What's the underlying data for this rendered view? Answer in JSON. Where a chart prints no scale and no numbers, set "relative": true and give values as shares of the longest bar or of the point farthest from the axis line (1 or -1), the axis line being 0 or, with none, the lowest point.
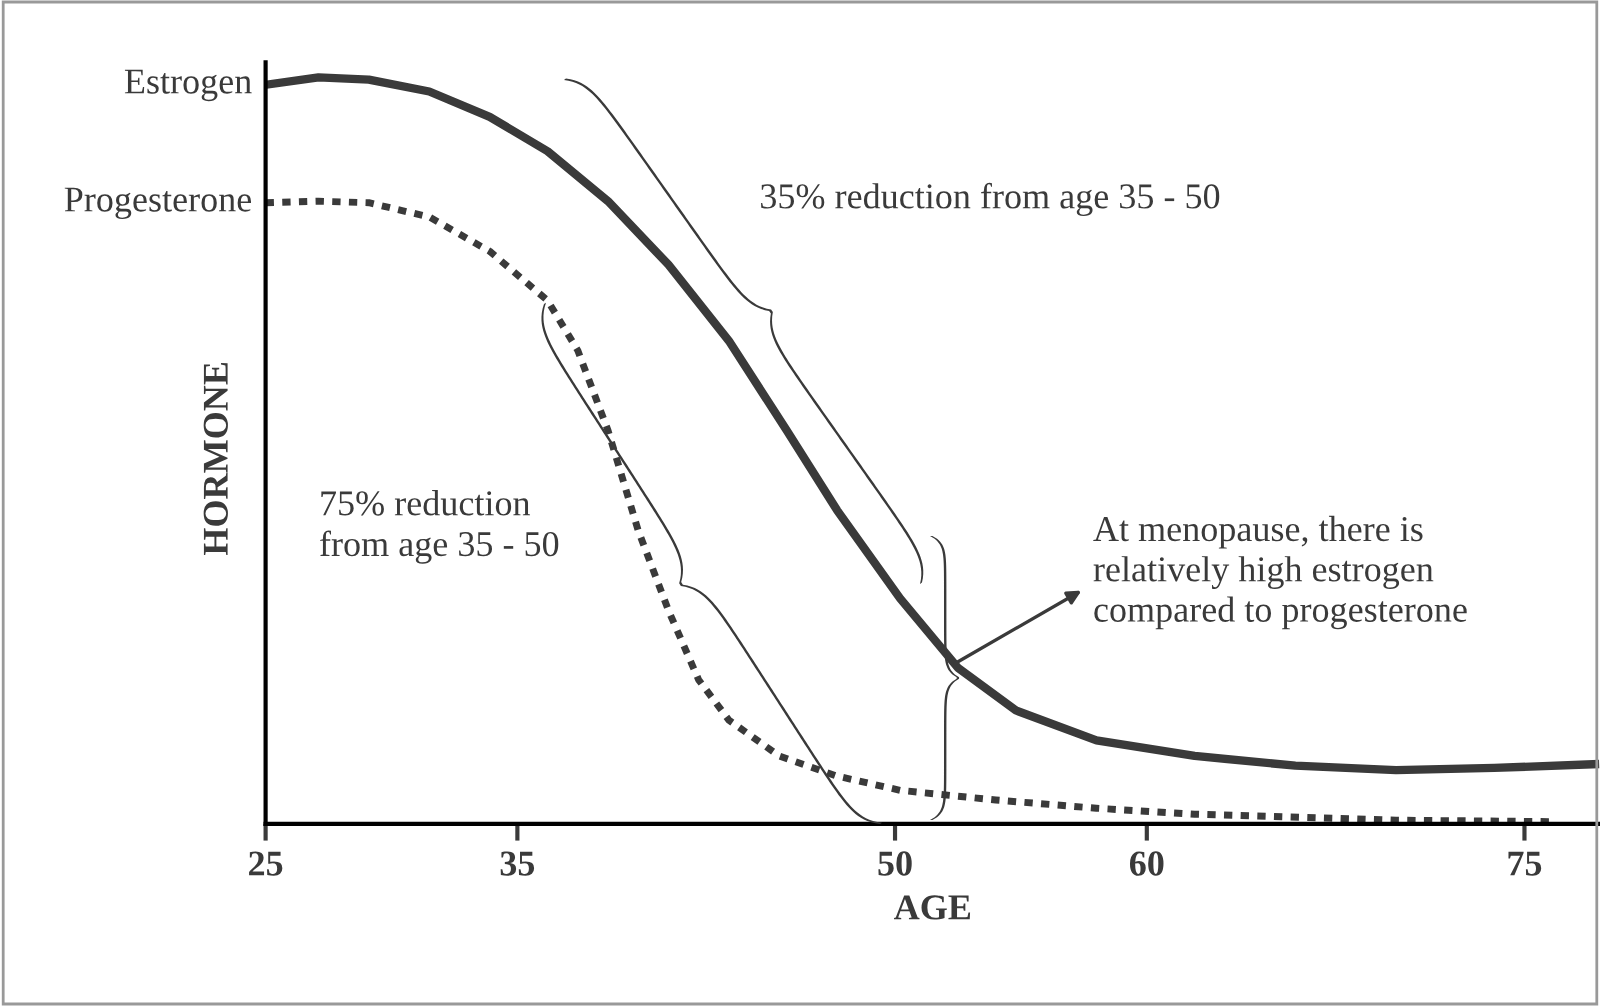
{
  "chart_data": {
    "type": "line",
    "relative": true,
    "xlabel": "AGE",
    "ylabel": "HORMONE",
    "xlim": [
      25,
      78
    ],
    "xticks": [
      25,
      35,
      50,
      60,
      75
    ],
    "legend": false,
    "grid": false,
    "series": [
      {
        "name": "Estrogen",
        "color": "#3a3a3a",
        "line_style": "solid",
        "x": [
          25,
          27.1,
          29.1,
          31.5,
          33.9,
          36.2,
          38.6,
          41.0,
          43.4,
          45.7,
          47.7,
          50.2,
          52.5,
          54.8,
          58.0,
          61.9,
          65.9,
          69.9,
          73.8,
          77.8
        ],
        "values": [
          0.99,
          1.0,
          0.997,
          0.981,
          0.947,
          0.901,
          0.834,
          0.749,
          0.647,
          0.527,
          0.42,
          0.302,
          0.209,
          0.152,
          0.112,
          0.091,
          0.078,
          0.072,
          0.075,
          0.08
        ]
      },
      {
        "name": "Progesterone",
        "color": "#3a3a3a",
        "line_style": "dotted",
        "x": [
          25,
          27.1,
          29.1,
          31.5,
          33.9,
          36.2,
          37.4,
          38.6,
          39.8,
          41.0,
          42.2,
          43.4,
          45.4,
          47.7,
          50.2,
          54.0,
          58.0,
          61.9,
          69.9,
          76.2
        ],
        "values": [
          0.832,
          0.834,
          0.832,
          0.813,
          0.767,
          0.701,
          0.634,
          0.527,
          0.393,
          0.286,
          0.193,
          0.139,
          0.091,
          0.064,
          0.045,
          0.032,
          0.021,
          0.013,
          0.005,
          0.003
        ]
      }
    ],
    "annotations": [
      "35% reduction from age 35 - 50",
      "75% reduction\nfrom age 35 - 50",
      "At menopause, there is\nrelatively high estrogen\ncompared to progesterone"
    ]
  }
}
